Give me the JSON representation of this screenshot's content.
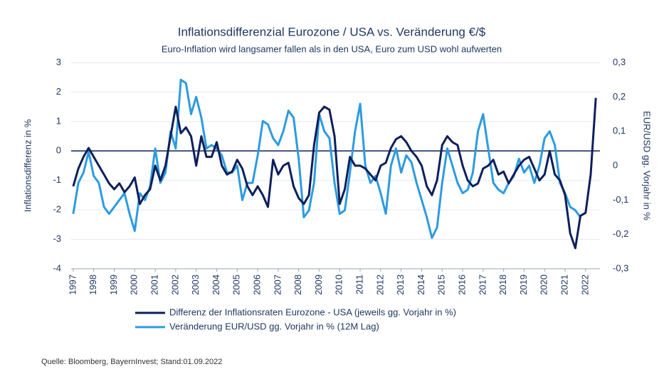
{
  "chart_data": {
    "type": "line",
    "title": "Inflationsdifferenzial Eurozone / USA vs. Veränderung €/$",
    "subtitle": "Euro-Inflation wird langsamer fallen als in den USA, Euro zum USD wohl aufwerten",
    "y_label": "Inflationsdifferenz in %",
    "y2_label": "EUR/USD gg. Vorjahr in %",
    "source": "Quelle: Bloomberg, BayernInvest; Stand:01.09.2022",
    "legend": "bottom",
    "grid": true,
    "xlim": [
      1996.9,
      2022.7
    ],
    "xticks": [
      1997,
      1998,
      1999,
      2000,
      2001,
      2002,
      2003,
      2004,
      2005,
      2006,
      2007,
      2008,
      2009,
      2010,
      2011,
      2012,
      2013,
      2014,
      2015,
      2016,
      2017,
      2018,
      2019,
      2020,
      2021,
      2022
    ],
    "ylim": [
      -4,
      3
    ],
    "yticks": [
      -4,
      -3,
      -2,
      -1,
      0,
      1,
      2,
      3
    ],
    "y2lim": [
      -0.3,
      0.3
    ],
    "y2ticks": [
      {
        "value": -0.3,
        "label": "-0,3"
      },
      {
        "value": -0.2,
        "label": "-0,2"
      },
      {
        "value": -0.1,
        "label": "-0,1"
      },
      0,
      {
        "value": 0.1,
        "label": "0,1"
      },
      {
        "value": 0.2,
        "label": "0,2"
      },
      {
        "value": 0.3,
        "label": "0,3"
      }
    ],
    "x": [
      1997,
      1997.25,
      1997.5,
      1997.75,
      1998,
      1998.25,
      1998.5,
      1998.75,
      1999,
      1999.25,
      1999.5,
      1999.75,
      2000,
      2000.25,
      2000.5,
      2000.75,
      2001,
      2001.25,
      2001.5,
      2001.75,
      2002,
      2002.25,
      2002.5,
      2002.75,
      2003,
      2003.25,
      2003.5,
      2003.75,
      2004,
      2004.25,
      2004.5,
      2004.75,
      2005,
      2005.25,
      2005.5,
      2005.75,
      2006,
      2006.25,
      2006.5,
      2006.75,
      2007,
      2007.25,
      2007.5,
      2007.75,
      2008,
      2008.25,
      2008.5,
      2008.75,
      2009,
      2009.25,
      2009.5,
      2009.75,
      2010,
      2010.25,
      2010.5,
      2010.75,
      2011,
      2011.25,
      2011.5,
      2011.75,
      2012,
      2012.25,
      2012.5,
      2012.75,
      2013,
      2013.25,
      2013.5,
      2013.75,
      2014,
      2014.25,
      2014.5,
      2014.75,
      2015,
      2015.25,
      2015.5,
      2015.75,
      2016,
      2016.25,
      2016.5,
      2016.75,
      2017,
      2017.25,
      2017.5,
      2017.75,
      2018,
      2018.25,
      2018.5,
      2018.75,
      2019,
      2019.25,
      2019.5,
      2019.75,
      2020,
      2020.25,
      2020.5,
      2020.75,
      2021,
      2021.25,
      2021.5,
      2021.75,
      2022,
      2022.25,
      2022.5
    ],
    "series": [
      {
        "name": "Differenz der Inflationsraten Eurozone - USA (jeweils gg. Vorjahr in %)",
        "color": "#0d1f5c",
        "values": [
          -1.2,
          -0.6,
          -0.2,
          0.1,
          -0.2,
          -0.5,
          -0.8,
          -1.1,
          -1.3,
          -1.1,
          -1.4,
          -1.2,
          -0.9,
          -1.8,
          -1.5,
          -1.3,
          -0.5,
          -1.0,
          -0.5,
          0.5,
          1.5,
          0.6,
          0.8,
          0.5,
          -0.5,
          0.5,
          -0.2,
          -0.2,
          0.3,
          -0.5,
          -0.8,
          -0.7,
          -0.3,
          -0.6,
          -1.2,
          -1.5,
          -1.2,
          -1.5,
          -1.9,
          -0.3,
          -0.8,
          -0.5,
          -0.4,
          -1.2,
          -1.6,
          -1.8,
          -1.5,
          0.2,
          1.3,
          1.5,
          1.4,
          0.5,
          -1.8,
          -1.3,
          -0.2,
          -0.5,
          -0.5,
          -0.6,
          -0.8,
          -1.0,
          -0.5,
          -0.4,
          0.1,
          0.4,
          0.5,
          0.3,
          0.0,
          -0.2,
          -0.5,
          -1.2,
          -1.5,
          -1.0,
          0.2,
          0.5,
          0.3,
          0.2,
          -0.5,
          -1.0,
          -1.2,
          -1.1,
          -0.6,
          -0.5,
          -0.3,
          -0.8,
          -0.7,
          -1.1,
          -0.8,
          -0.5,
          -0.3,
          -0.2,
          -0.6,
          -1.0,
          -0.8,
          0.0,
          -0.8,
          -1.0,
          -1.5,
          -2.8,
          -3.3,
          -2.2,
          -2.1,
          -0.8,
          1.8
        ]
      },
      {
        "name": "Veränderung EUR/USD gg. Vorjahr in % (12M Lag)",
        "color": "#2c9be0",
        "axis": "y2",
        "values": [
          -0.14,
          -0.05,
          -0.02,
          0.04,
          -0.03,
          -0.05,
          -0.12,
          -0.14,
          -0.12,
          -0.1,
          -0.08,
          -0.14,
          -0.19,
          -0.08,
          -0.1,
          -0.06,
          0.05,
          -0.05,
          -0.02,
          0.1,
          0.05,
          0.25,
          0.24,
          0.15,
          0.2,
          0.14,
          0.05,
          0.06,
          0.05,
          0.03,
          -0.02,
          -0.02,
          0.0,
          -0.1,
          -0.05,
          -0.05,
          0.03,
          0.13,
          0.12,
          0.08,
          0.06,
          0.1,
          0.16,
          0.14,
          0.02,
          -0.15,
          -0.13,
          -0.05,
          0.15,
          0.1,
          0.08,
          -0.05,
          -0.14,
          -0.13,
          -0.02,
          0.1,
          0.18,
          0.0,
          -0.05,
          -0.03,
          -0.08,
          -0.14,
          0.0,
          0.05,
          -0.02,
          0.03,
          0.01,
          -0.05,
          -0.1,
          -0.15,
          -0.21,
          -0.18,
          -0.05,
          0.05,
          0.0,
          -0.05,
          -0.08,
          -0.07,
          -0.02,
          0.1,
          0.15,
          0.05,
          -0.05,
          -0.07,
          -0.08,
          -0.05,
          -0.03,
          0.02,
          -0.02,
          0.0,
          -0.05,
          0.0,
          0.08,
          0.1,
          0.06,
          -0.05,
          -0.08,
          -0.12,
          -0.13,
          -0.15,
          null,
          null,
          null
        ]
      }
    ]
  }
}
